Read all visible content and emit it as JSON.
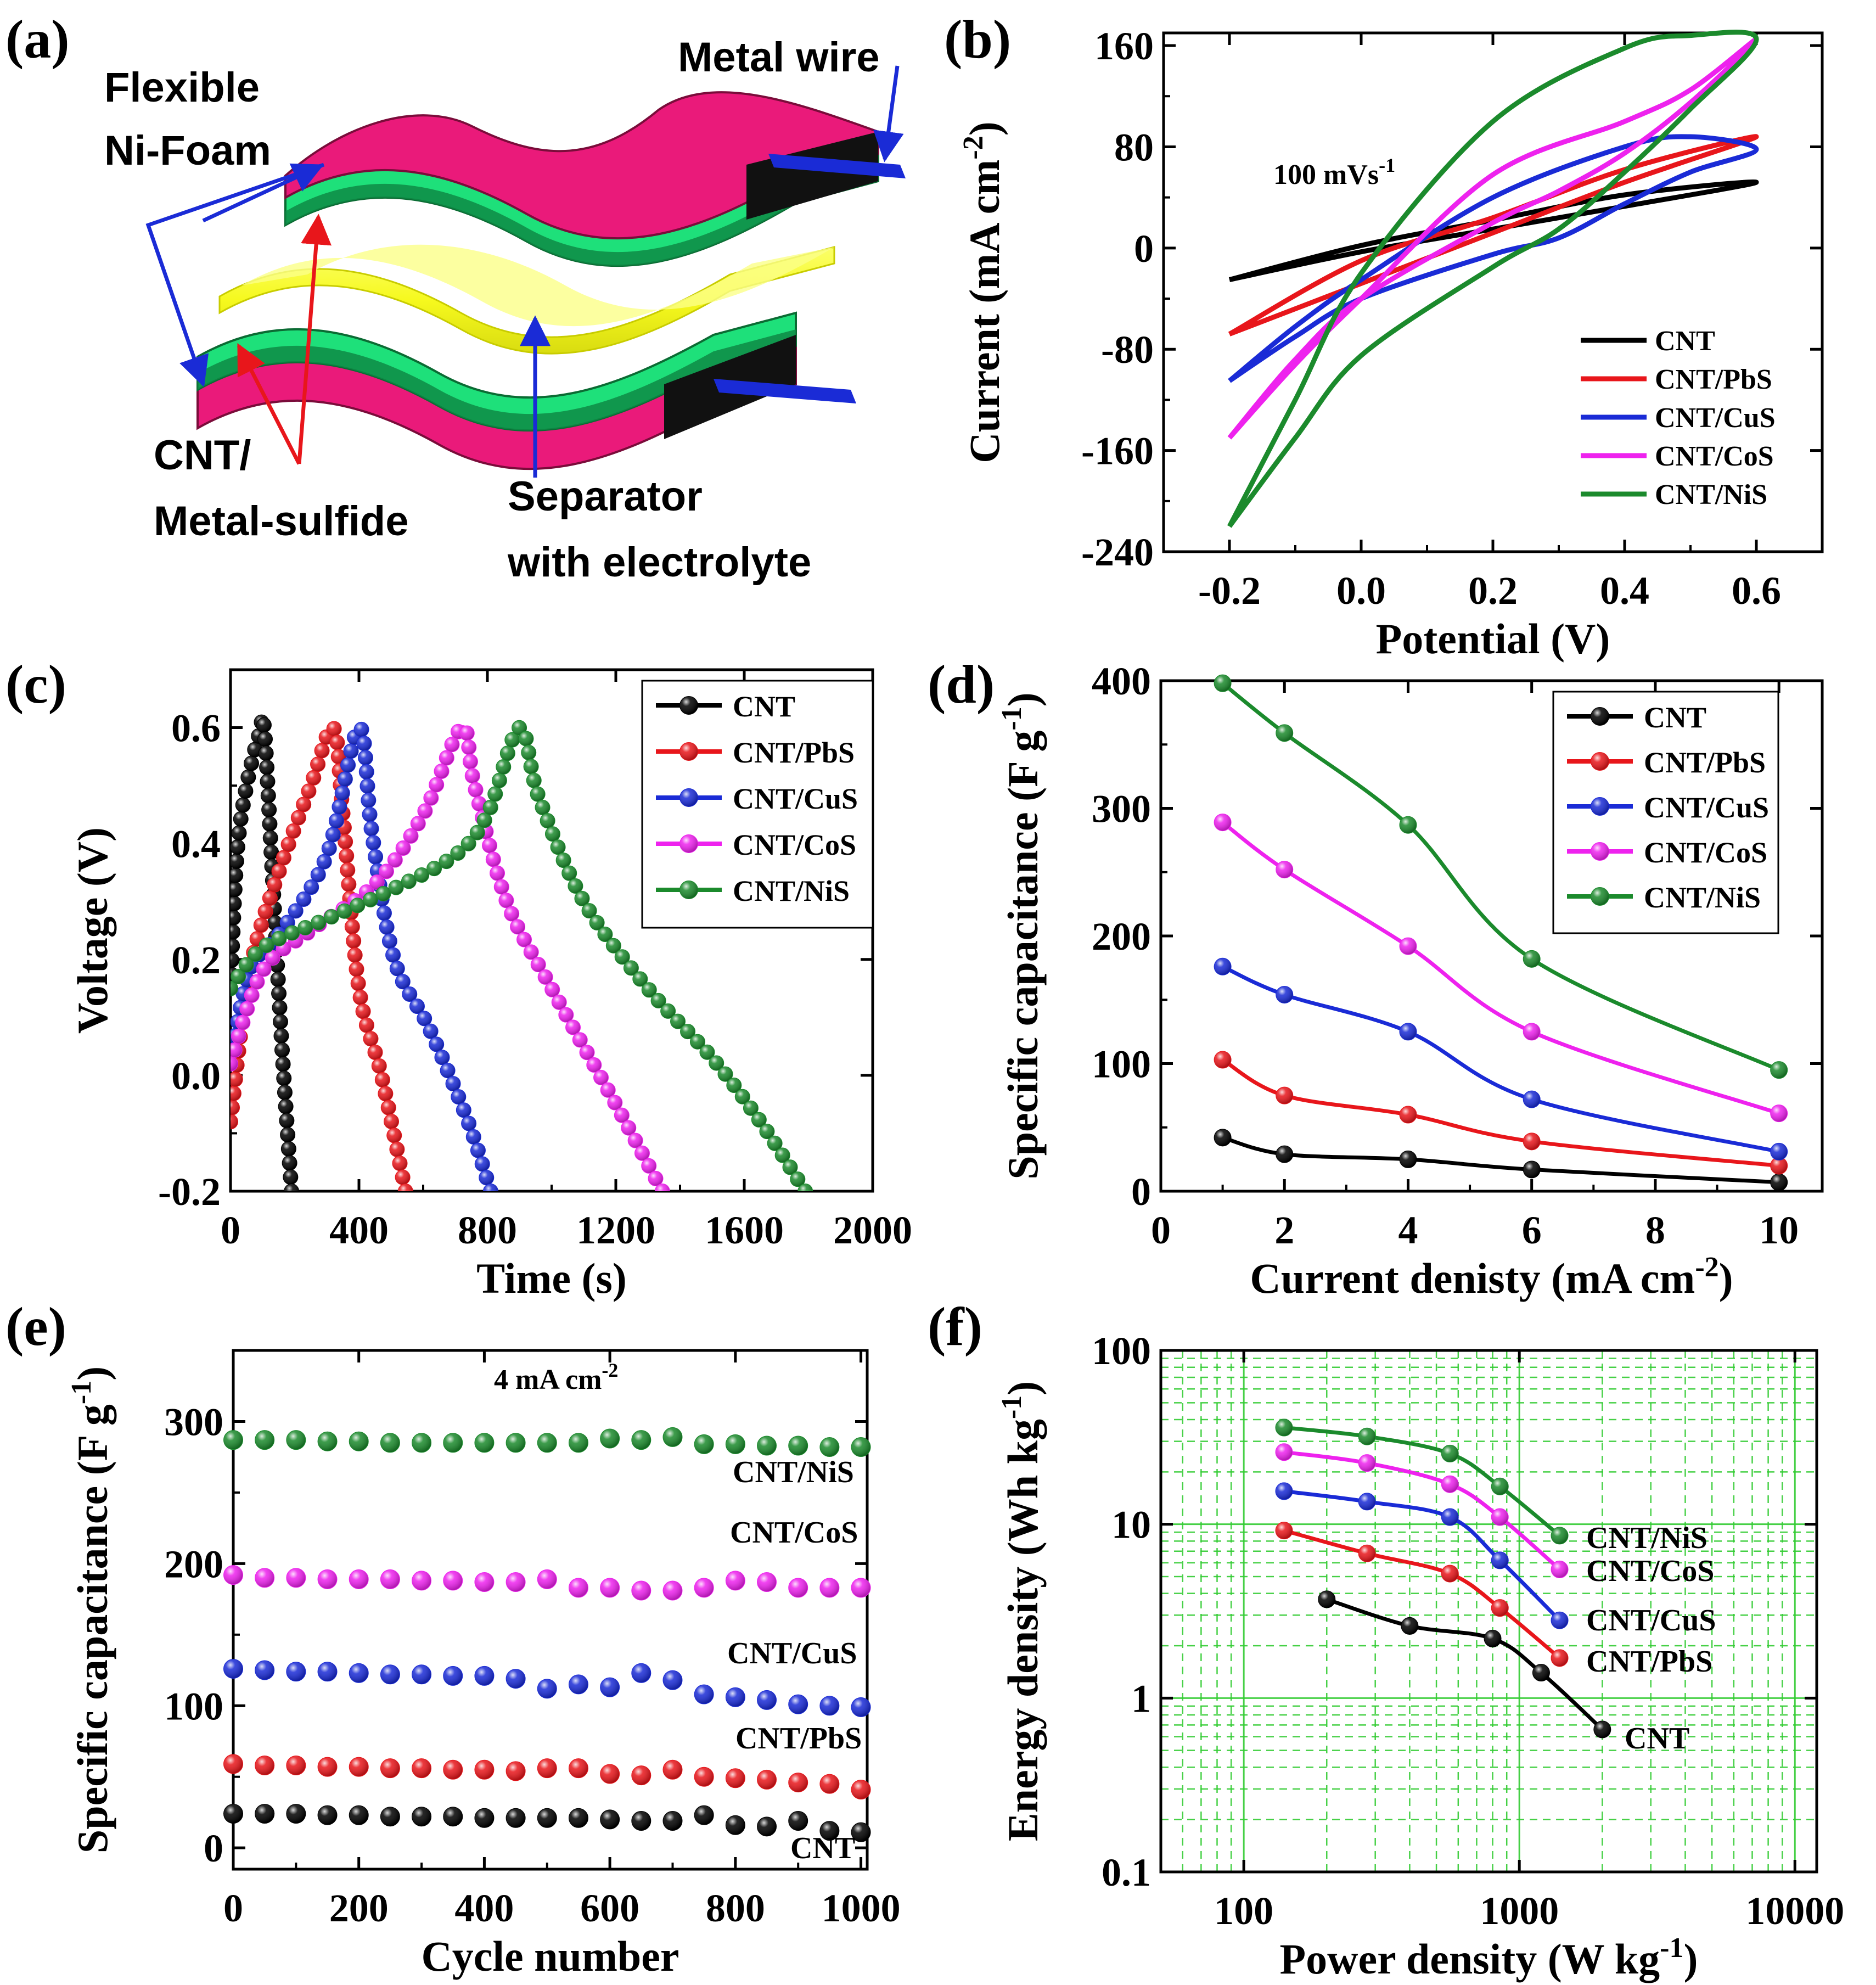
{
  "colors": {
    "CNT": "#000000",
    "CNT/PbS": "#e8161b",
    "CNT/CuS": "#1a2bd6",
    "CNT/CoS": "#ee22ee",
    "CNT/NiS": "#1b8a2c",
    "foam_pink": "#ea1a7a",
    "active_green": "#1ee07a",
    "separator_yellow": "#f6f91e",
    "arrow_blue": "#1a2bd6",
    "arrow_red": "#e8161b",
    "grid_green": "#33cc33"
  },
  "panel_a": {
    "panel_label": "(a)",
    "labels": {
      "foam_line1": "Flexible",
      "foam_line2": "Ni-Foam",
      "wire": "Metal wire",
      "active_line1": "CNT/",
      "active_line2": "Metal-sulfide",
      "separator_line1": "Separator",
      "separator_line2": "with electrolyte"
    }
  },
  "chart_data": [
    {
      "panel": "(b)",
      "type": "line",
      "title": "",
      "annotation": "100 mVs",
      "annotation_sup": "-1",
      "xlabel": "Potential (V)",
      "ylabel": "Current (mA cm",
      "ylabel_sup": "-2",
      "ylabel_end": ")",
      "xlim": [
        -0.3,
        0.7
      ],
      "ylim": [
        -240,
        170
      ],
      "xticks": [
        -0.2,
        0.0,
        0.2,
        0.4,
        0.6
      ],
      "xtick_labels": [
        "-0.2",
        "0.0",
        "0.2",
        "0.4",
        "0.6"
      ],
      "yticks": [
        -240,
        -160,
        -80,
        0,
        80,
        160
      ],
      "ytick_labels": [
        "-240",
        "-160",
        "-80",
        "0",
        "80",
        "160"
      ],
      "legend": [
        "CNT",
        "CNT/PbS",
        "CNT/CuS",
        "CNT/CoS",
        "CNT/NiS"
      ],
      "legend_position": "bottom-right",
      "series": [
        {
          "name": "CNT",
          "x": [
            -0.2,
            0.0,
            0.2,
            0.4,
            0.6,
            0.4,
            0.2,
            0.0,
            -0.2
          ],
          "y": [
            -25,
            -3,
            15,
            33,
            52,
            42,
            22,
            2,
            -25
          ]
        },
        {
          "name": "CNT/PbS",
          "x": [
            -0.2,
            0.0,
            0.2,
            0.4,
            0.6,
            0.4,
            0.2,
            0.0,
            -0.2
          ],
          "y": [
            -68,
            -28,
            12,
            52,
            88,
            62,
            24,
            -10,
            -68
          ]
        },
        {
          "name": "CNT/CuS",
          "x": [
            -0.2,
            -0.1,
            0.0,
            0.2,
            0.4,
            0.5,
            0.6,
            0.5,
            0.4,
            0.3,
            0.2,
            0.0,
            -0.1,
            -0.2
          ],
          "y": [
            -105,
            -62,
            -25,
            40,
            80,
            88,
            78,
            60,
            35,
            8,
            -5,
            -40,
            -70,
            -105
          ]
        },
        {
          "name": "CNT/CoS",
          "x": [
            -0.2,
            -0.1,
            0.0,
            0.2,
            0.4,
            0.5,
            0.6,
            0.5,
            0.4,
            0.3,
            0.2,
            0.0,
            -0.1,
            -0.2
          ],
          "y": [
            -150,
            -92,
            -40,
            58,
            100,
            125,
            165,
            115,
            75,
            45,
            20,
            -40,
            -88,
            -150
          ]
        },
        {
          "name": "CNT/NiS",
          "x": [
            -0.2,
            -0.1,
            0.0,
            0.2,
            0.4,
            0.5,
            0.6,
            0.5,
            0.4,
            0.3,
            0.2,
            0.0,
            -0.1,
            -0.2
          ],
          "y": [
            -220,
            -120,
            -20,
            100,
            158,
            168,
            165,
            110,
            60,
            15,
            -15,
            -85,
            -150,
            -220
          ]
        }
      ]
    },
    {
      "panel": "(c)",
      "type": "line",
      "title": "",
      "xlabel": "Time (s)",
      "ylabel": "Voltage (V)",
      "xlim": [
        0,
        2000
      ],
      "ylim": [
        -0.2,
        0.7
      ],
      "xticks": [
        0,
        400,
        800,
        1200,
        1600,
        2000
      ],
      "xtick_labels": [
        "0",
        "400",
        "800",
        "1200",
        "1600",
        "2000"
      ],
      "yticks": [
        -0.2,
        0.0,
        0.2,
        0.4,
        0.6
      ],
      "ytick_labels": [
        "-0.2",
        "0.0",
        "0.2",
        "0.4",
        "0.6"
      ],
      "legend": [
        "CNT",
        "CNT/PbS",
        "CNT/CuS",
        "CNT/CoS",
        "CNT/NiS"
      ],
      "legend_position": "top-right",
      "series": [
        {
          "name": "CNT",
          "x": [
            0,
            20,
            50,
            90,
            105,
            130,
            160,
            190
          ],
          "y": [
            0.15,
            0.38,
            0.5,
            0.59,
            0.6,
            0.35,
            0.05,
            -0.2
          ]
        },
        {
          "name": "CNT/PbS",
          "x": [
            0,
            60,
            150,
            250,
            320,
            350,
            400,
            470,
            545
          ],
          "y": [
            -0.08,
            0.18,
            0.35,
            0.5,
            0.6,
            0.45,
            0.15,
            0.0,
            -0.2
          ]
        },
        {
          "name": "CNT/CuS",
          "x": [
            0,
            60,
            160,
            300,
            400,
            440,
            510,
            620,
            740,
            810
          ],
          "y": [
            0.02,
            0.18,
            0.25,
            0.38,
            0.6,
            0.42,
            0.2,
            0.08,
            -0.08,
            -0.2
          ]
        },
        {
          "name": "CNT/CoS",
          "x": [
            0,
            100,
            250,
            450,
            600,
            720,
            760,
            860,
            1000,
            1200,
            1345
          ],
          "y": [
            0.02,
            0.18,
            0.25,
            0.33,
            0.45,
            0.6,
            0.5,
            0.3,
            0.15,
            -0.05,
            -0.2
          ]
        },
        {
          "name": "CNT/NiS",
          "x": [
            0,
            100,
            300,
            500,
            700,
            800,
            900,
            960,
            1100,
            1300,
            1500,
            1650,
            1790
          ],
          "y": [
            0.15,
            0.22,
            0.27,
            0.32,
            0.38,
            0.45,
            0.6,
            0.48,
            0.3,
            0.15,
            0.03,
            -0.08,
            -0.2
          ]
        }
      ]
    },
    {
      "panel": "(d)",
      "type": "line",
      "title": "",
      "xlabel": "Current denisty (mA cm",
      "xlabel_sup": "-2",
      "xlabel_end": ")",
      "ylabel": "Specific capacitance (F g",
      "ylabel_sup": "-1",
      "ylabel_end": ")",
      "xlim": [
        0,
        10.7
      ],
      "ylim": [
        0,
        400
      ],
      "xticks": [
        0,
        2,
        4,
        6,
        8,
        10
      ],
      "xtick_labels": [
        "0",
        "2",
        "4",
        "6",
        "8",
        "10"
      ],
      "yticks": [
        0,
        100,
        200,
        300,
        400
      ],
      "ytick_labels": [
        "0",
        "100",
        "200",
        "300",
        "400"
      ],
      "legend": [
        "CNT",
        "CNT/PbS",
        "CNT/CuS",
        "CNT/CoS",
        "CNT/NiS"
      ],
      "legend_position": "top-right",
      "x": [
        1,
        2,
        4,
        6,
        10
      ],
      "series": [
        {
          "name": "CNT",
          "values": [
            42,
            29,
            25,
            17,
            7
          ]
        },
        {
          "name": "CNT/PbS",
          "values": [
            103,
            75,
            60,
            39,
            20
          ]
        },
        {
          "name": "CNT/CuS",
          "values": [
            176,
            154,
            125,
            72,
            31
          ]
        },
        {
          "name": "CNT/CoS",
          "values": [
            289,
            252,
            192,
            125,
            61
          ]
        },
        {
          "name": "CNT/NiS",
          "values": [
            398,
            359,
            287,
            182,
            95
          ]
        }
      ]
    },
    {
      "panel": "(e)",
      "type": "scatter",
      "title": "",
      "annotation": "4 mA cm",
      "annotation_sup": "-2",
      "xlabel": "Cycle number",
      "ylabel": "Specific capacitance (F g",
      "ylabel_sup": "-1",
      "ylabel_end": ")",
      "xlim": [
        0,
        1010
      ],
      "ylim": [
        -15,
        350
      ],
      "xticks": [
        0,
        200,
        400,
        600,
        800,
        1000
      ],
      "xtick_labels": [
        "0",
        "200",
        "400",
        "600",
        "800",
        "1000"
      ],
      "yticks": [
        0,
        100,
        200,
        300
      ],
      "ytick_labels": [
        "0",
        "100",
        "200",
        "300"
      ],
      "series_labels": [
        "CNT/NiS",
        "CNT/CoS",
        "CNT/CuS",
        "CNT/PbS",
        "CNT"
      ],
      "x": [
        0,
        50,
        100,
        150,
        200,
        250,
        300,
        350,
        400,
        450,
        500,
        550,
        600,
        650,
        700,
        750,
        800,
        850,
        900,
        950,
        1000
      ],
      "series": [
        {
          "name": "CNT/NiS",
          "values": [
            287,
            287,
            287,
            286,
            286,
            285,
            285,
            285,
            285,
            285,
            285,
            285,
            288,
            287,
            289,
            284,
            284,
            283,
            283,
            282,
            282
          ]
        },
        {
          "name": "CNT/CoS",
          "values": [
            192,
            190,
            190,
            189,
            189,
            189,
            188,
            188,
            187,
            187,
            189,
            183,
            183,
            181,
            181,
            183,
            188,
            187,
            183,
            183,
            183
          ]
        },
        {
          "name": "CNT/CuS",
          "values": [
            126,
            125,
            124,
            124,
            123,
            122,
            122,
            121,
            121,
            119,
            112,
            115,
            113,
            123,
            118,
            108,
            106,
            104,
            101,
            100,
            99
          ]
        },
        {
          "name": "CNT/PbS",
          "values": [
            59,
            58,
            58,
            57,
            57,
            56,
            56,
            55,
            55,
            54,
            56,
            56,
            52,
            51,
            55,
            50,
            49,
            48,
            46,
            45,
            41
          ]
        },
        {
          "name": "CNT",
          "values": [
            24,
            24,
            24,
            23,
            23,
            22,
            22,
            22,
            21,
            21,
            21,
            21,
            20,
            19,
            19,
            23,
            16,
            15,
            19,
            12,
            11
          ]
        }
      ]
    },
    {
      "panel": "(f)",
      "type": "line",
      "title": "",
      "xscale": "log",
      "yscale": "log",
      "xlabel": "Power density (W kg",
      "xlabel_sup": "-1",
      "xlabel_end": ")",
      "ylabel": "Energy density (Wh kg",
      "ylabel_sup": "-1",
      "ylabel_end": ")",
      "xlim": [
        50,
        12000
      ],
      "ylim": [
        0.1,
        100
      ],
      "xticks": [
        100,
        1000,
        10000
      ],
      "xtick_labels": [
        "100",
        "1000",
        "10000"
      ],
      "yticks": [
        0.1,
        1,
        10,
        100
      ],
      "ytick_labels": [
        "0.1",
        "1",
        "10",
        "100"
      ],
      "grid": true,
      "series_labels": [
        "CNT/NiS",
        "CNT/CoS",
        "CNT/CuS",
        "CNT/PbS",
        "CNT"
      ],
      "series": [
        {
          "name": "CNT/NiS",
          "x": [
            140,
            280,
            560,
            850,
            1400
          ],
          "y": [
            36,
            32,
            25.5,
            16.5,
            8.6
          ]
        },
        {
          "name": "CNT/CoS",
          "x": [
            140,
            280,
            560,
            850,
            1400
          ],
          "y": [
            26,
            22.5,
            17,
            11,
            5.5
          ]
        },
        {
          "name": "CNT/CuS",
          "x": [
            140,
            280,
            560,
            850,
            1400
          ],
          "y": [
            15.5,
            13.5,
            11,
            6.2,
            2.8
          ]
        },
        {
          "name": "CNT/PbS",
          "x": [
            140,
            280,
            560,
            850,
            1400
          ],
          "y": [
            9.2,
            6.8,
            5.2,
            3.3,
            1.7
          ]
        },
        {
          "name": "CNT",
          "x": [
            200,
            400,
            800,
            1200,
            2000
          ],
          "y": [
            3.7,
            2.6,
            2.2,
            1.4,
            0.66
          ]
        }
      ]
    }
  ]
}
